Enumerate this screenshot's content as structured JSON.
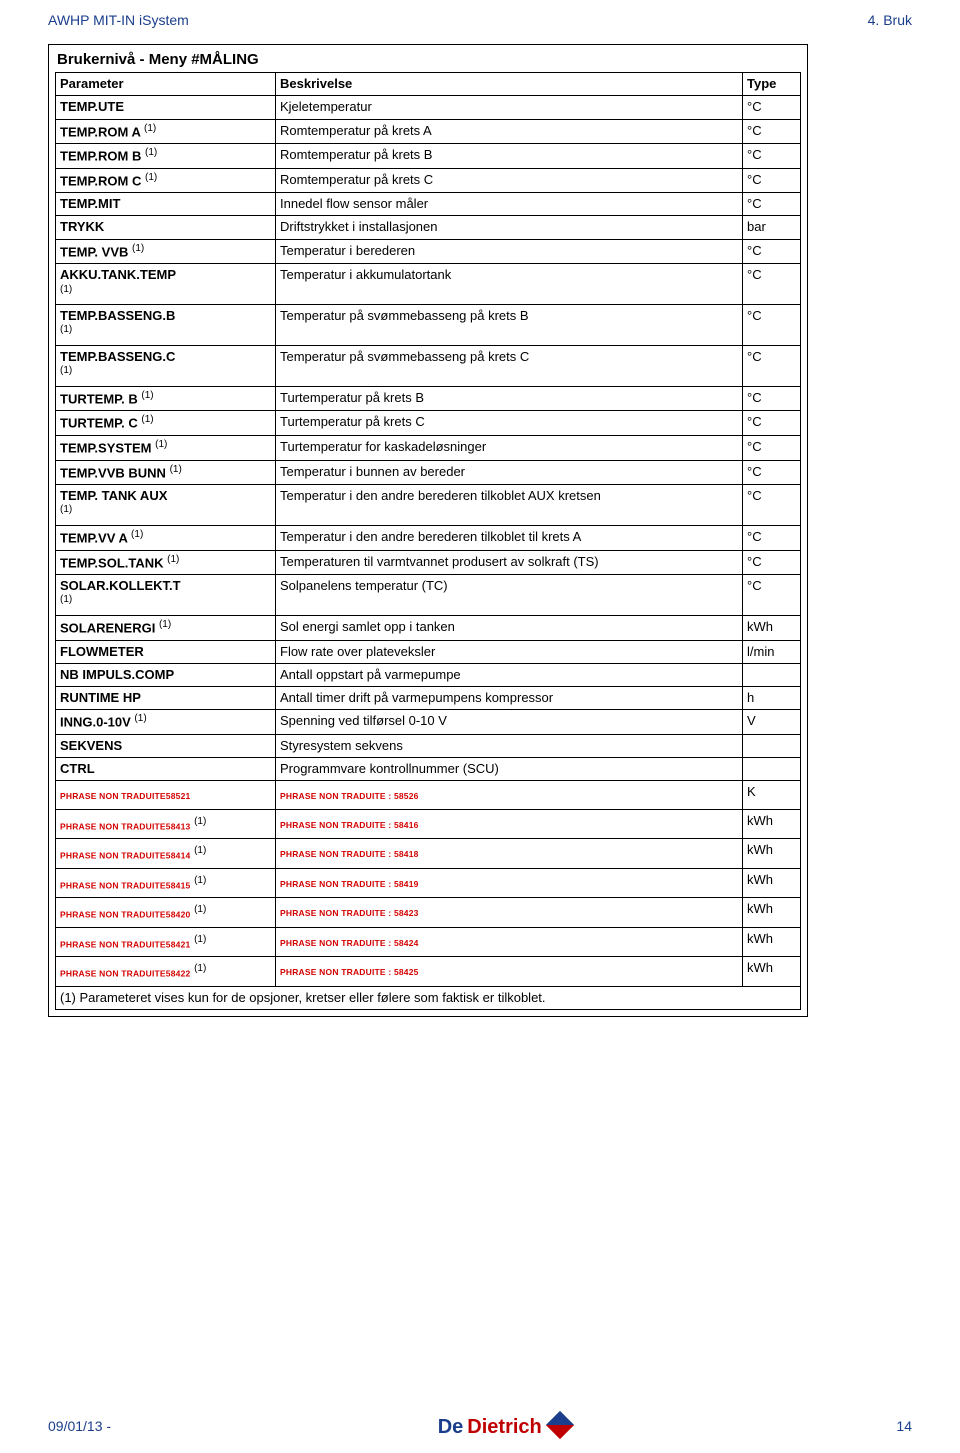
{
  "header": {
    "left": "AWHP MIT-IN iSystem",
    "right": "4.  Bruk"
  },
  "box": {
    "title": "Brukernivå - Meny #MÅLING"
  },
  "columns": {
    "c1": "Parameter",
    "c2": "Beskrivelse",
    "c3": "Type"
  },
  "rows": [
    {
      "p": "TEMP.UTE",
      "s": "",
      "d": "Kjeletemperatur",
      "t": "°C"
    },
    {
      "p": "TEMP.ROM A ",
      "s": "(1)",
      "d": "Romtemperatur på krets A",
      "t": "°C"
    },
    {
      "p": "TEMP.ROM B ",
      "s": "(1)",
      "d": "Romtemperatur på krets B",
      "t": "°C"
    },
    {
      "p": "TEMP.ROM C ",
      "s": "(1)",
      "d": "Romtemperatur på krets C",
      "t": "°C"
    },
    {
      "p": "TEMP.MIT",
      "s": "",
      "d": "Innedel flow sensor måler",
      "t": "°C"
    },
    {
      "p": "TRYKK",
      "s": "",
      "d": "Driftstrykket i installasjonen",
      "t": "bar"
    },
    {
      "p": "TEMP. VVB ",
      "s": "(1)",
      "d": "Temperatur i berederen",
      "t": "°C"
    },
    {
      "p": "AKKU.TANK.TEMP",
      "s": "(1)",
      "sb": true,
      "d": "Temperatur i akkumulatortank",
      "t": "°C"
    },
    {
      "p": "TEMP.BASSENG.B",
      "s": "(1)",
      "sb": true,
      "d": "Temperatur på svømmebasseng på krets B",
      "t": "°C"
    },
    {
      "p": "TEMP.BASSENG.C",
      "s": "(1)",
      "sb": true,
      "d": "Temperatur på svømmebasseng på krets C",
      "t": "°C"
    },
    {
      "p": "TURTEMP. B ",
      "s": "(1)",
      "d": "Turtemperatur på krets B",
      "t": "°C"
    },
    {
      "p": "TURTEMP. C ",
      "s": "(1)",
      "d": "Turtemperatur på krets C",
      "t": "°C"
    },
    {
      "p": "TEMP.SYSTEM ",
      "s": "(1)",
      "d": "Turtemperatur for kaskadeløsninger",
      "t": "°C"
    },
    {
      "p": "TEMP.VVB BUNN ",
      "s": "(1)",
      "d": "Temperatur i bunnen av bereder",
      "t": "°C"
    },
    {
      "p": "TEMP. TANK AUX",
      "s": "(1)",
      "sb": true,
      "d": "Temperatur i den andre berederen tilkoblet AUX kretsen",
      "t": "°C"
    },
    {
      "p": "TEMP.VV A ",
      "s": "(1)",
      "d": "Temperatur i den andre berederen tilkoblet til krets A",
      "t": "°C"
    },
    {
      "p": "TEMP.SOL.TANK ",
      "s": "(1)",
      "d": "Temperaturen til varmtvannet produsert av solkraft (TS)",
      "t": "°C"
    },
    {
      "p": "SOLAR.KOLLEKT.T",
      "s": "(1)",
      "sb": true,
      "d": "Solpanelens temperatur (TC)",
      "t": "°C"
    },
    {
      "p": "SOLARENERGI ",
      "s": "(1)",
      "d": "Sol energi samlet opp i tanken",
      "t": "kWh"
    },
    {
      "p": "FLOWMETER",
      "s": "",
      "d": "Flow rate over plateveksler",
      "t": "l/min"
    },
    {
      "p": "NB IMPULS.COMP",
      "s": "",
      "d": "Antall oppstart på varmepumpe",
      "t": ""
    },
    {
      "p": "RUNTIME HP",
      "s": "",
      "d": "Antall timer drift på varmepumpens kompressor",
      "t": "h"
    },
    {
      "p": "INNG.0-10V ",
      "s": "(1)",
      "d": "Spenning ved tilførsel 0-10 V",
      "t": "V"
    },
    {
      "p": "SEKVENS",
      "s": "",
      "d": "Styresystem sekvens",
      "t": ""
    },
    {
      "p": "CTRL",
      "s": "",
      "d": "Programmvare kontrollnummer (SCU)",
      "t": ""
    }
  ],
  "redRows": [
    {
      "p": "PHRASE NON TRADUITE58521",
      "s": "",
      "d": "PHRASE NON TRADUITE : 58526",
      "t": "K"
    },
    {
      "p": "PHRASE NON TRADUITE58413",
      "s": "(1)",
      "d": "PHRASE NON TRADUITE : 58416",
      "t": "kWh"
    },
    {
      "p": "PHRASE NON TRADUITE58414",
      "s": "(1)",
      "d": "PHRASE NON TRADUITE : 58418",
      "t": "kWh"
    },
    {
      "p": "PHRASE NON TRADUITE58415",
      "s": "(1)",
      "d": "PHRASE NON TRADUITE : 58419",
      "t": "kWh"
    },
    {
      "p": "PHRASE NON TRADUITE58420",
      "s": "(1)",
      "d": "PHRASE NON TRADUITE : 58423",
      "t": "kWh"
    },
    {
      "p": "PHRASE NON TRADUITE58421",
      "s": "(1)",
      "d": "PHRASE NON TRADUITE : 58424",
      "t": "kWh"
    },
    {
      "p": "PHRASE NON TRADUITE58422",
      "s": "(1)",
      "d": "PHRASE NON TRADUITE : 58425",
      "t": "kWh"
    }
  ],
  "footnote": "(1)  Parameteret vises kun for de opsjoner, kretser eller følere som faktisk er tilkoblet.",
  "footer": {
    "date": "09/01/13 -",
    "logoDe": "De",
    "logoDietrich": "Dietrich",
    "page": "14"
  }
}
